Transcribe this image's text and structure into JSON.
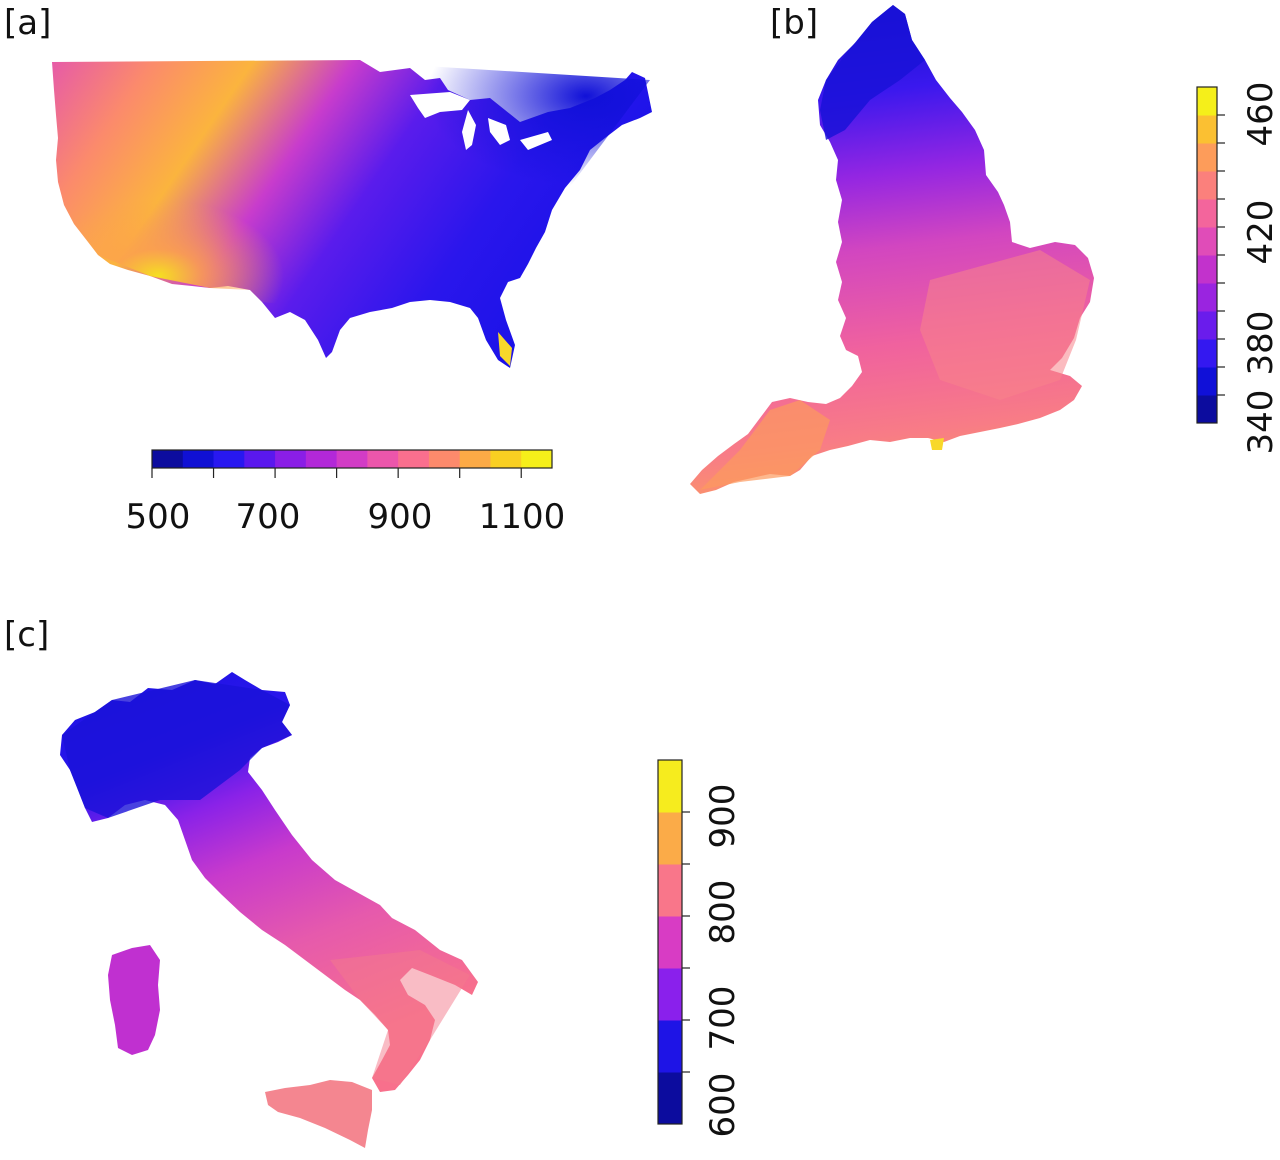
{
  "panels": {
    "a": {
      "label": "[a]"
    },
    "b": {
      "label": "[b]"
    },
    "c": {
      "label": "[c]"
    }
  },
  "colorbars": {
    "a": {
      "ticks": [
        "500",
        "700",
        "900",
        "1100"
      ],
      "colors": [
        "#0c0c9e",
        "#1010d4",
        "#2818f0",
        "#5a18ee",
        "#8a1ee6",
        "#b228d8",
        "#d23cc6",
        "#ec56ab",
        "#fa6f8e",
        "#fd8a6c",
        "#fcaa46",
        "#f9cf22",
        "#f5ef1a"
      ]
    },
    "b": {
      "ticks": [
        "340",
        "380",
        "420",
        "460"
      ],
      "colors": [
        "#0c0c9e",
        "#1010d8",
        "#3418f0",
        "#6a1cec",
        "#9a24e0",
        "#c232cc",
        "#e04cb8",
        "#f3659c",
        "#fb807c",
        "#fd9c5a",
        "#fbc032",
        "#f5ef1a"
      ]
    },
    "c": {
      "ticks": [
        "600",
        "700",
        "800",
        "900"
      ],
      "colors": [
        "#0c0c9e",
        "#1e14e6",
        "#8a20ec",
        "#d83cc4",
        "#f9768a",
        "#fbab48",
        "#f6ec1e"
      ]
    }
  },
  "maps": {
    "usa": {
      "region": "Contiguous United States",
      "palette": "plasma"
    },
    "england": {
      "region": "England",
      "palette": "plasma"
    },
    "italy": {
      "region": "Italy",
      "palette": "plasma"
    }
  }
}
